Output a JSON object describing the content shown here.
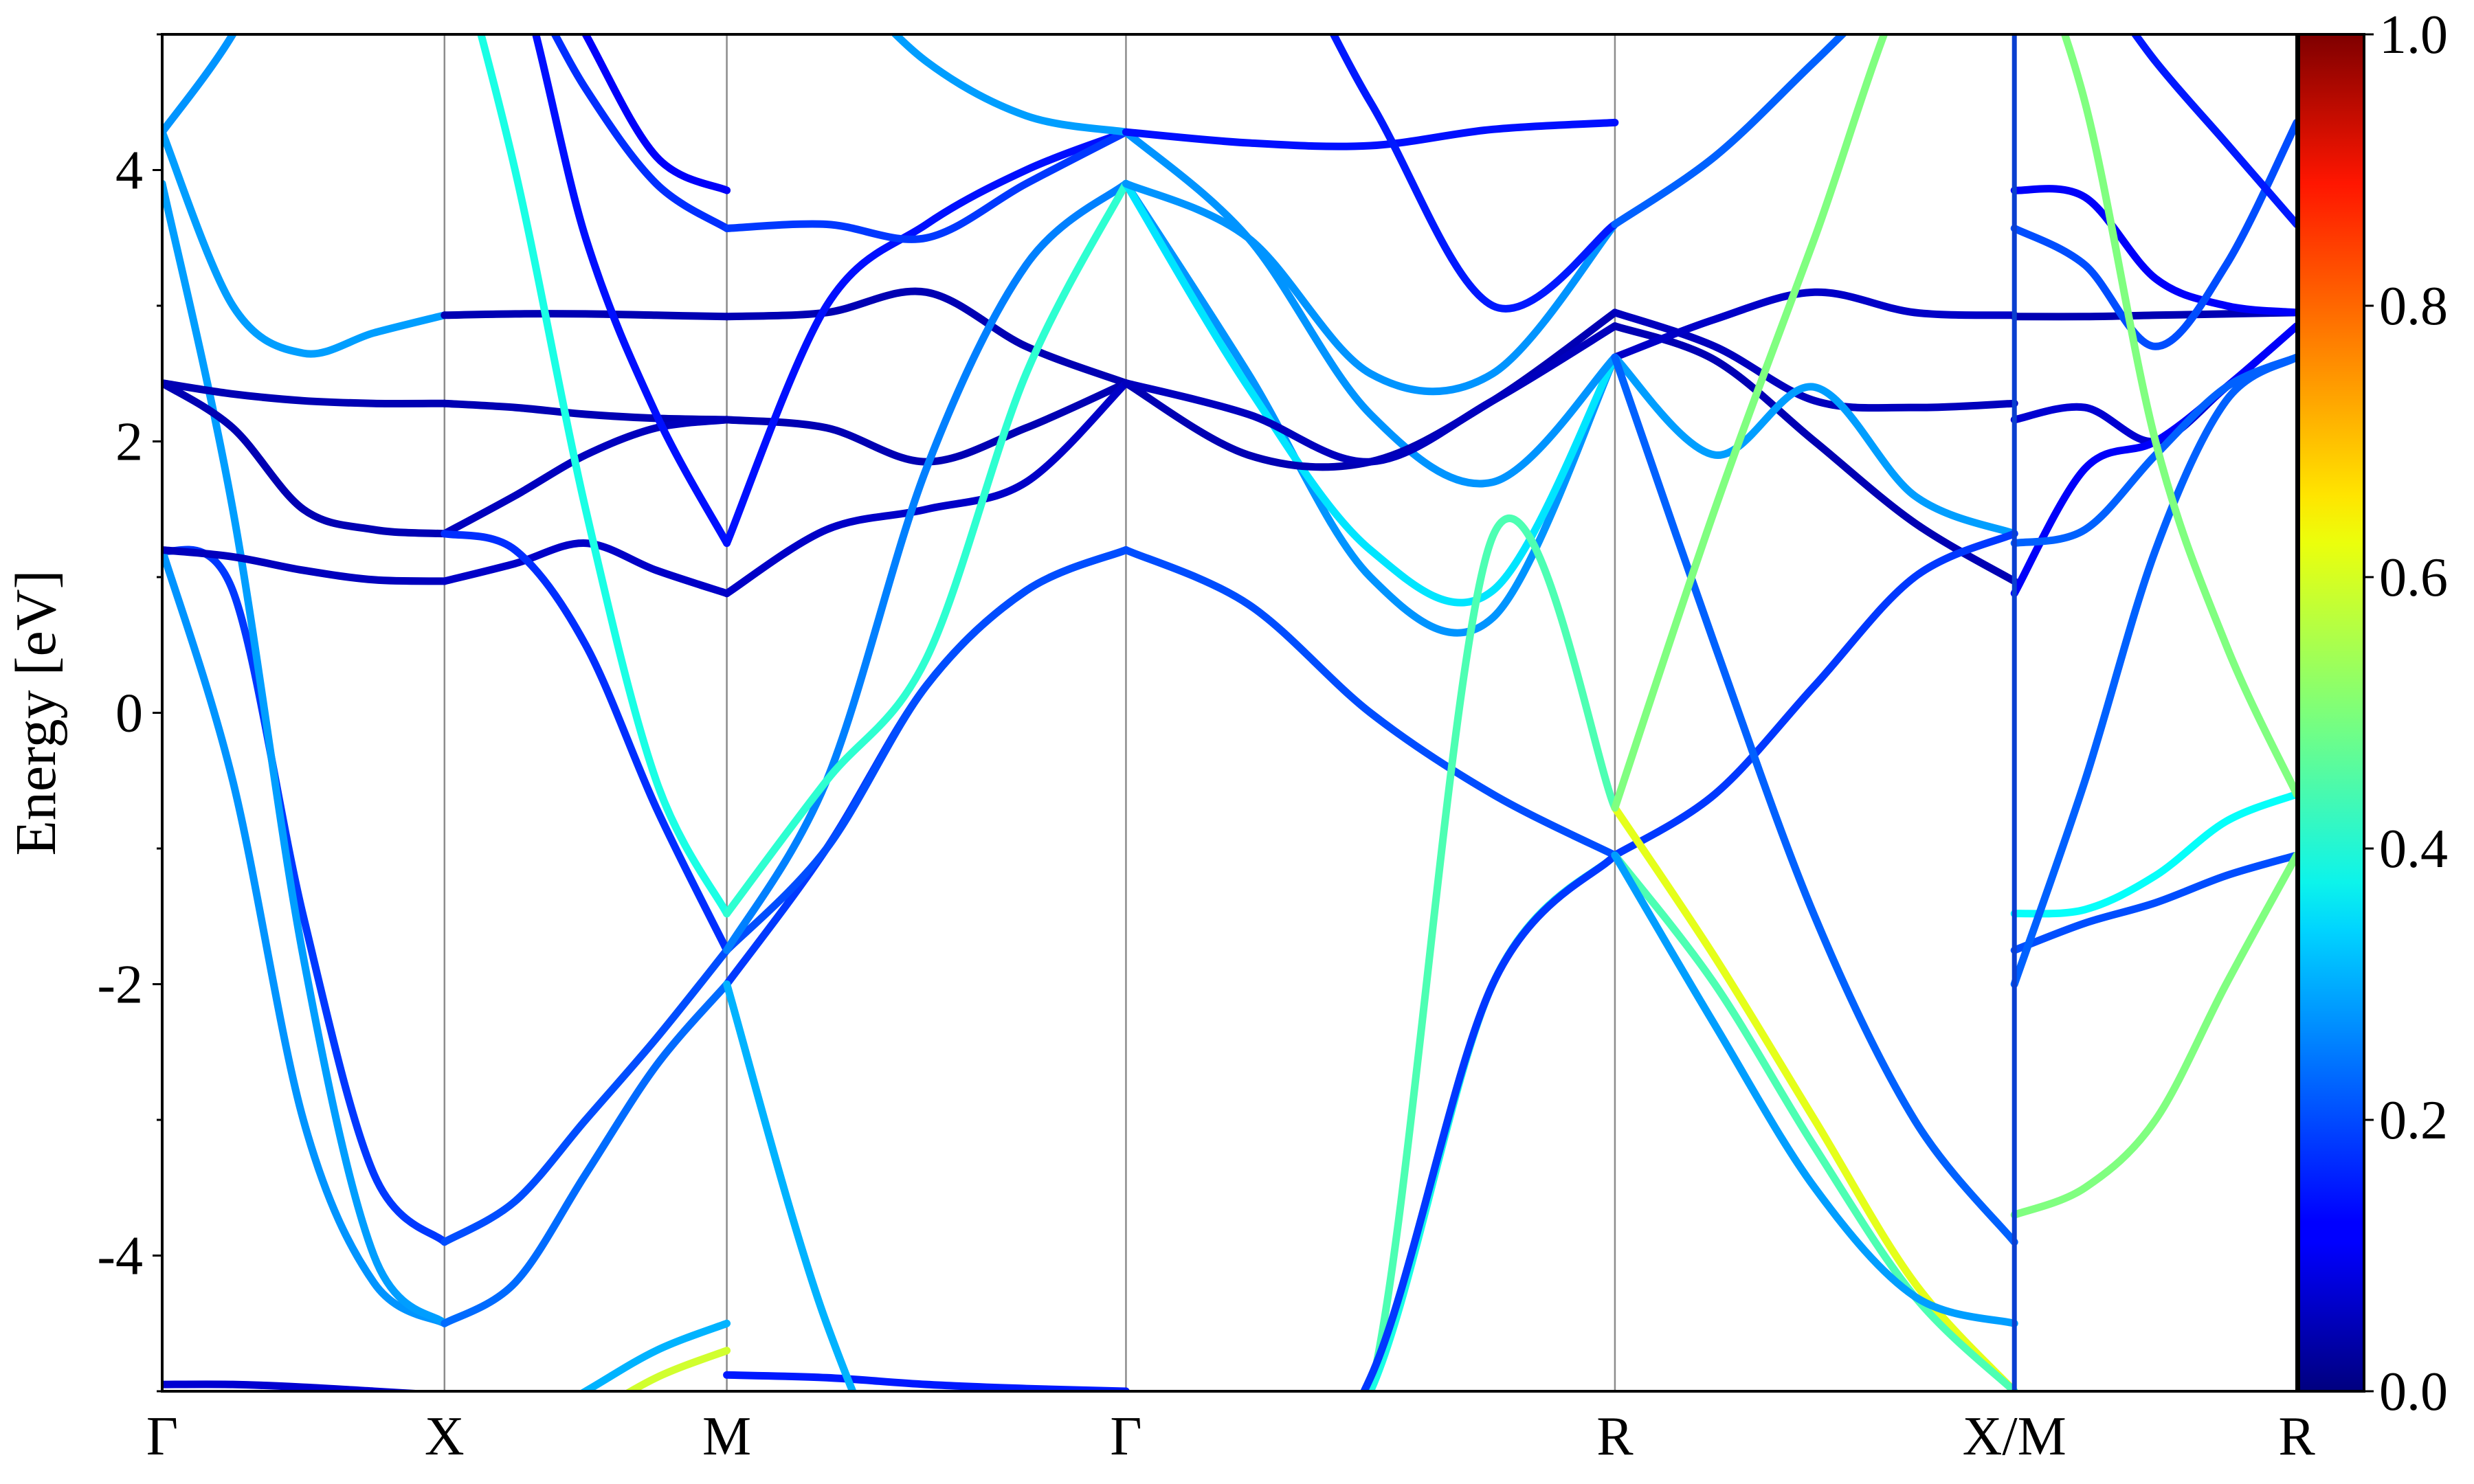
{
  "chart_data": {
    "type": "line",
    "title": "",
    "xlabel": "",
    "ylabel": "Energy [eV]",
    "ylim": [
      -5,
      5
    ],
    "yticks": [
      -4,
      -2,
      0,
      2,
      4
    ],
    "ytick_labels": [
      "-4",
      "-2",
      "0",
      "2",
      "4"
    ],
    "grid": false,
    "colormap": "jet",
    "colorbar": {
      "range": [
        0.0,
        1.0
      ],
      "ticks": [
        0.0,
        0.2,
        0.4,
        0.6,
        0.8,
        1.0
      ],
      "tick_labels": [
        "0.0",
        "0.2",
        "0.4",
        "0.6",
        "0.8",
        "1.0"
      ],
      "position": "right"
    },
    "kpath": {
      "labels": [
        "Γ",
        "X",
        "M",
        "Γ",
        "R",
        "X/M",
        "R"
      ],
      "positions": [
        0,
        1,
        2,
        3.414,
        5.146,
        6.561,
        7.561
      ],
      "xlim": [
        0,
        7.561
      ],
      "break_after_segment": 4
    },
    "segments": [
      {
        "name": "Γ-X",
        "bands": [
          {
            "w": 0.08,
            "E": [
              -4.95,
              -4.95,
              -4.97,
              -5.0,
              -5.03
            ]
          },
          {
            "w": 0.18,
            "E": [
              1.2,
              0.9,
              -1.5,
              -3.4,
              -3.9
            ]
          },
          {
            "w": 0.27,
            "E": [
              1.2,
              -0.5,
              -3.0,
              -4.2,
              -4.5
            ]
          },
          {
            "w": 0.28,
            "E": [
              3.9,
              1.5,
              -1.8,
              -4.0,
              -4.5
            ]
          },
          {
            "w": 0.05,
            "E": [
              2.43,
              2.35,
              2.3,
              2.28,
              2.28
            ]
          },
          {
            "w": 0.05,
            "E": [
              2.43,
              2.1,
              1.5,
              1.35,
              1.32
            ]
          },
          {
            "w": 0.28,
            "E": [
              4.28,
              3.0,
              2.65,
              2.8,
              2.93
            ]
          },
          {
            "w": 0.27,
            "E": [
              4.28,
              5.0,
              6.0,
              6.0,
              6.0
            ]
          },
          {
            "w": 0.06,
            "E": [
              1.2,
              1.15,
              1.05,
              0.98,
              0.97
            ]
          }
        ]
      },
      {
        "name": "X-M",
        "bands": [
          {
            "w": 0.05,
            "E": [
              2.93,
              2.94,
              2.94,
              2.93,
              2.92
            ]
          },
          {
            "w": 0.05,
            "E": [
              2.28,
              2.25,
              2.2,
              2.17,
              2.16
            ]
          },
          {
            "w": 0.06,
            "E": [
              1.32,
              1.6,
              1.9,
              2.1,
              2.16
            ]
          },
          {
            "w": 0.07,
            "E": [
              0.97,
              1.1,
              1.25,
              1.05,
              0.88
            ]
          },
          {
            "w": 0.17,
            "E": [
              1.32,
              1.2,
              0.5,
              -0.7,
              -1.75
            ]
          },
          {
            "w": 0.2,
            "E": [
              -3.9,
              -3.6,
              -3.0,
              -2.4,
              -1.75
            ]
          },
          {
            "w": 0.23,
            "E": [
              -4.5,
              -4.2,
              -3.4,
              -2.6,
              -2.0
            ]
          },
          {
            "w": 0.4,
            "E": [
              6.0,
              4.0,
              1.5,
              -0.5,
              -1.48
            ]
          },
          {
            "w": 0.14,
            "E": [
              6.0,
              5.5,
              3.5,
              2.2,
              1.25
            ]
          },
          {
            "w": 0.17,
            "E": [
              6.0,
              5.5,
              4.6,
              3.9,
              3.57
            ]
          },
          {
            "w": 0.12,
            "E": [
              6.0,
              6.0,
              5.0,
              4.1,
              3.85
            ]
          },
          {
            "w": 0.3,
            "E": [
              -5.5,
              -5.3,
              -5.0,
              -4.7,
              -4.5
            ]
          },
          {
            "w": 0.58,
            "E": [
              -6.0,
              -5.5,
              -5.2,
              -4.9,
              -4.7
            ]
          }
        ]
      },
      {
        "name": "M-Γ",
        "bands": [
          {
            "w": 0.05,
            "E": [
              2.92,
              2.95,
              3.1,
              2.7,
              2.43
            ]
          },
          {
            "w": 0.05,
            "E": [
              2.16,
              2.1,
              1.85,
              2.1,
              2.43
            ]
          },
          {
            "w": 0.07,
            "E": [
              0.88,
              1.35,
              1.5,
              1.7,
              2.43
            ]
          },
          {
            "w": 0.14,
            "E": [
              1.25,
              3.0,
              3.6,
              4.0,
              4.28
            ]
          },
          {
            "w": 0.18,
            "E": [
              3.57,
              3.6,
              3.5,
              3.9,
              4.28
            ]
          },
          {
            "w": 0.18,
            "E": [
              -2.0,
              -1.0,
              0.2,
              0.9,
              1.2
            ]
          },
          {
            "w": 0.2,
            "E": [
              -1.75,
              -1.0,
              0.2,
              0.9,
              1.2
            ]
          },
          {
            "w": 0.25,
            "E": [
              -1.75,
              -0.5,
              1.8,
              3.3,
              3.9
            ]
          },
          {
            "w": 0.42,
            "E": [
              -1.48,
              -0.5,
              0.4,
              2.5,
              3.9
            ]
          },
          {
            "w": 0.28,
            "E": [
              6.0,
              5.5,
              4.8,
              4.4,
              4.28
            ]
          },
          {
            "w": 0.15,
            "E": [
              -4.88,
              -4.9,
              -4.95,
              -4.98,
              -5.0
            ]
          },
          {
            "w": 0.3,
            "E": [
              -2.0,
              -4.5,
              -6.0,
              -6.0,
              -6.0
            ]
          }
        ]
      },
      {
        "name": "Γ-R",
        "bands": [
          {
            "w": 0.2,
            "E": [
              1.2,
              0.8,
              0.0,
              -0.6,
              -1.05
            ]
          },
          {
            "w": 0.27,
            "E": [
              3.9,
              2.5,
              1.0,
              0.7,
              2.62
            ]
          },
          {
            "w": 0.35,
            "E": [
              3.9,
              2.4,
              1.2,
              0.9,
              2.62
            ]
          },
          {
            "w": 0.27,
            "E": [
              4.28,
              3.5,
              2.2,
              1.7,
              2.62
            ]
          },
          {
            "w": 0.05,
            "E": [
              2.43,
              1.9,
              1.85,
              2.3,
              2.95
            ]
          },
          {
            "w": 0.06,
            "E": [
              2.43,
              2.2,
              1.85,
              2.3,
              2.85
            ]
          },
          {
            "w": 0.14,
            "E": [
              4.28,
              4.2,
              4.18,
              4.3,
              4.35
            ]
          },
          {
            "w": 0.45,
            "E": [
              -6.0,
              -6.0,
              -5.0,
              1.3,
              -0.7
            ]
          },
          {
            "w": 0.4,
            "E": [
              -6.0,
              -6.0,
              -5.0,
              -2.0,
              -1.05
            ]
          },
          {
            "w": 0.18,
            "E": [
              -6.0,
              -6.0,
              -4.9,
              -2.0,
              -1.05
            ]
          },
          {
            "w": 0.27,
            "E": [
              3.9,
              3.5,
              2.5,
              2.5,
              3.6
            ]
          },
          {
            "w": 0.15,
            "E": [
              6.0,
              6.0,
              4.5,
              3.0,
              3.6
            ]
          }
        ]
      },
      {
        "name": "R-X",
        "bands": [
          {
            "w": 0.05,
            "E": [
              2.85,
              2.6,
              2.0,
              1.4,
              0.97
            ]
          },
          {
            "w": 0.06,
            "E": [
              2.95,
              2.7,
              2.3,
              2.25,
              2.28
            ]
          },
          {
            "w": 0.07,
            "E": [
              2.62,
              2.9,
              3.1,
              2.95,
              2.93
            ]
          },
          {
            "w": 0.28,
            "E": [
              2.62,
              1.9,
              2.4,
              1.6,
              1.32
            ]
          },
          {
            "w": 0.18,
            "E": [
              -1.05,
              -0.6,
              0.2,
              1.0,
              1.32
            ]
          },
          {
            "w": 0.6,
            "E": [
              -0.7,
              -1.8,
              -3.0,
              -4.2,
              -5.0
            ]
          },
          {
            "w": 0.45,
            "E": [
              -1.05,
              -2.0,
              -3.2,
              -4.3,
              -5.0
            ]
          },
          {
            "w": 0.28,
            "E": [
              -1.05,
              -2.3,
              -3.5,
              -4.3,
              -4.5
            ]
          },
          {
            "w": 0.22,
            "E": [
              2.62,
              0.5,
              -1.5,
              -3.0,
              -3.9
            ]
          },
          {
            "w": 0.5,
            "E": [
              -0.7,
              1.5,
              3.5,
              5.5,
              6.0
            ]
          },
          {
            "w": 0.22,
            "E": [
              3.6,
              4.1,
              4.8,
              5.5,
              6.0
            ]
          }
        ]
      },
      {
        "name": "M-R",
        "bands": [
          {
            "w": 0.05,
            "E": [
              2.92,
              2.92,
              2.93,
              2.94,
              2.95
            ]
          },
          {
            "w": 0.08,
            "E": [
              2.16,
              2.25,
              2.0,
              2.4,
              2.85
            ]
          },
          {
            "w": 0.12,
            "E": [
              0.88,
              1.8,
              2.0,
              2.4,
              2.85
            ]
          },
          {
            "w": 0.22,
            "E": [
              1.25,
              1.35,
              1.9,
              2.4,
              2.62
            ]
          },
          {
            "w": 0.12,
            "E": [
              3.85,
              3.8,
              3.2,
              3.0,
              2.95
            ]
          },
          {
            "w": 0.2,
            "E": [
              3.57,
              3.3,
              2.7,
              3.3,
              4.35
            ]
          },
          {
            "w": 0.38,
            "E": [
              -1.48,
              -1.45,
              -1.2,
              -0.8,
              -0.6
            ]
          },
          {
            "w": 0.2,
            "E": [
              -1.75,
              -1.55,
              -1.4,
              -1.2,
              -1.05
            ]
          },
          {
            "w": 0.22,
            "E": [
              -2.0,
              -0.5,
              1.2,
              2.3,
              2.62
            ]
          },
          {
            "w": 0.5,
            "E": [
              -3.7,
              -3.5,
              -3.0,
              -2.0,
              -1.05
            ]
          },
          {
            "w": 0.5,
            "E": [
              6.0,
              4.5,
              2.0,
              0.5,
              -0.6
            ]
          },
          {
            "w": 0.15,
            "E": [
              6.0,
              5.5,
              4.8,
              4.2,
              3.6
            ]
          }
        ]
      }
    ]
  }
}
